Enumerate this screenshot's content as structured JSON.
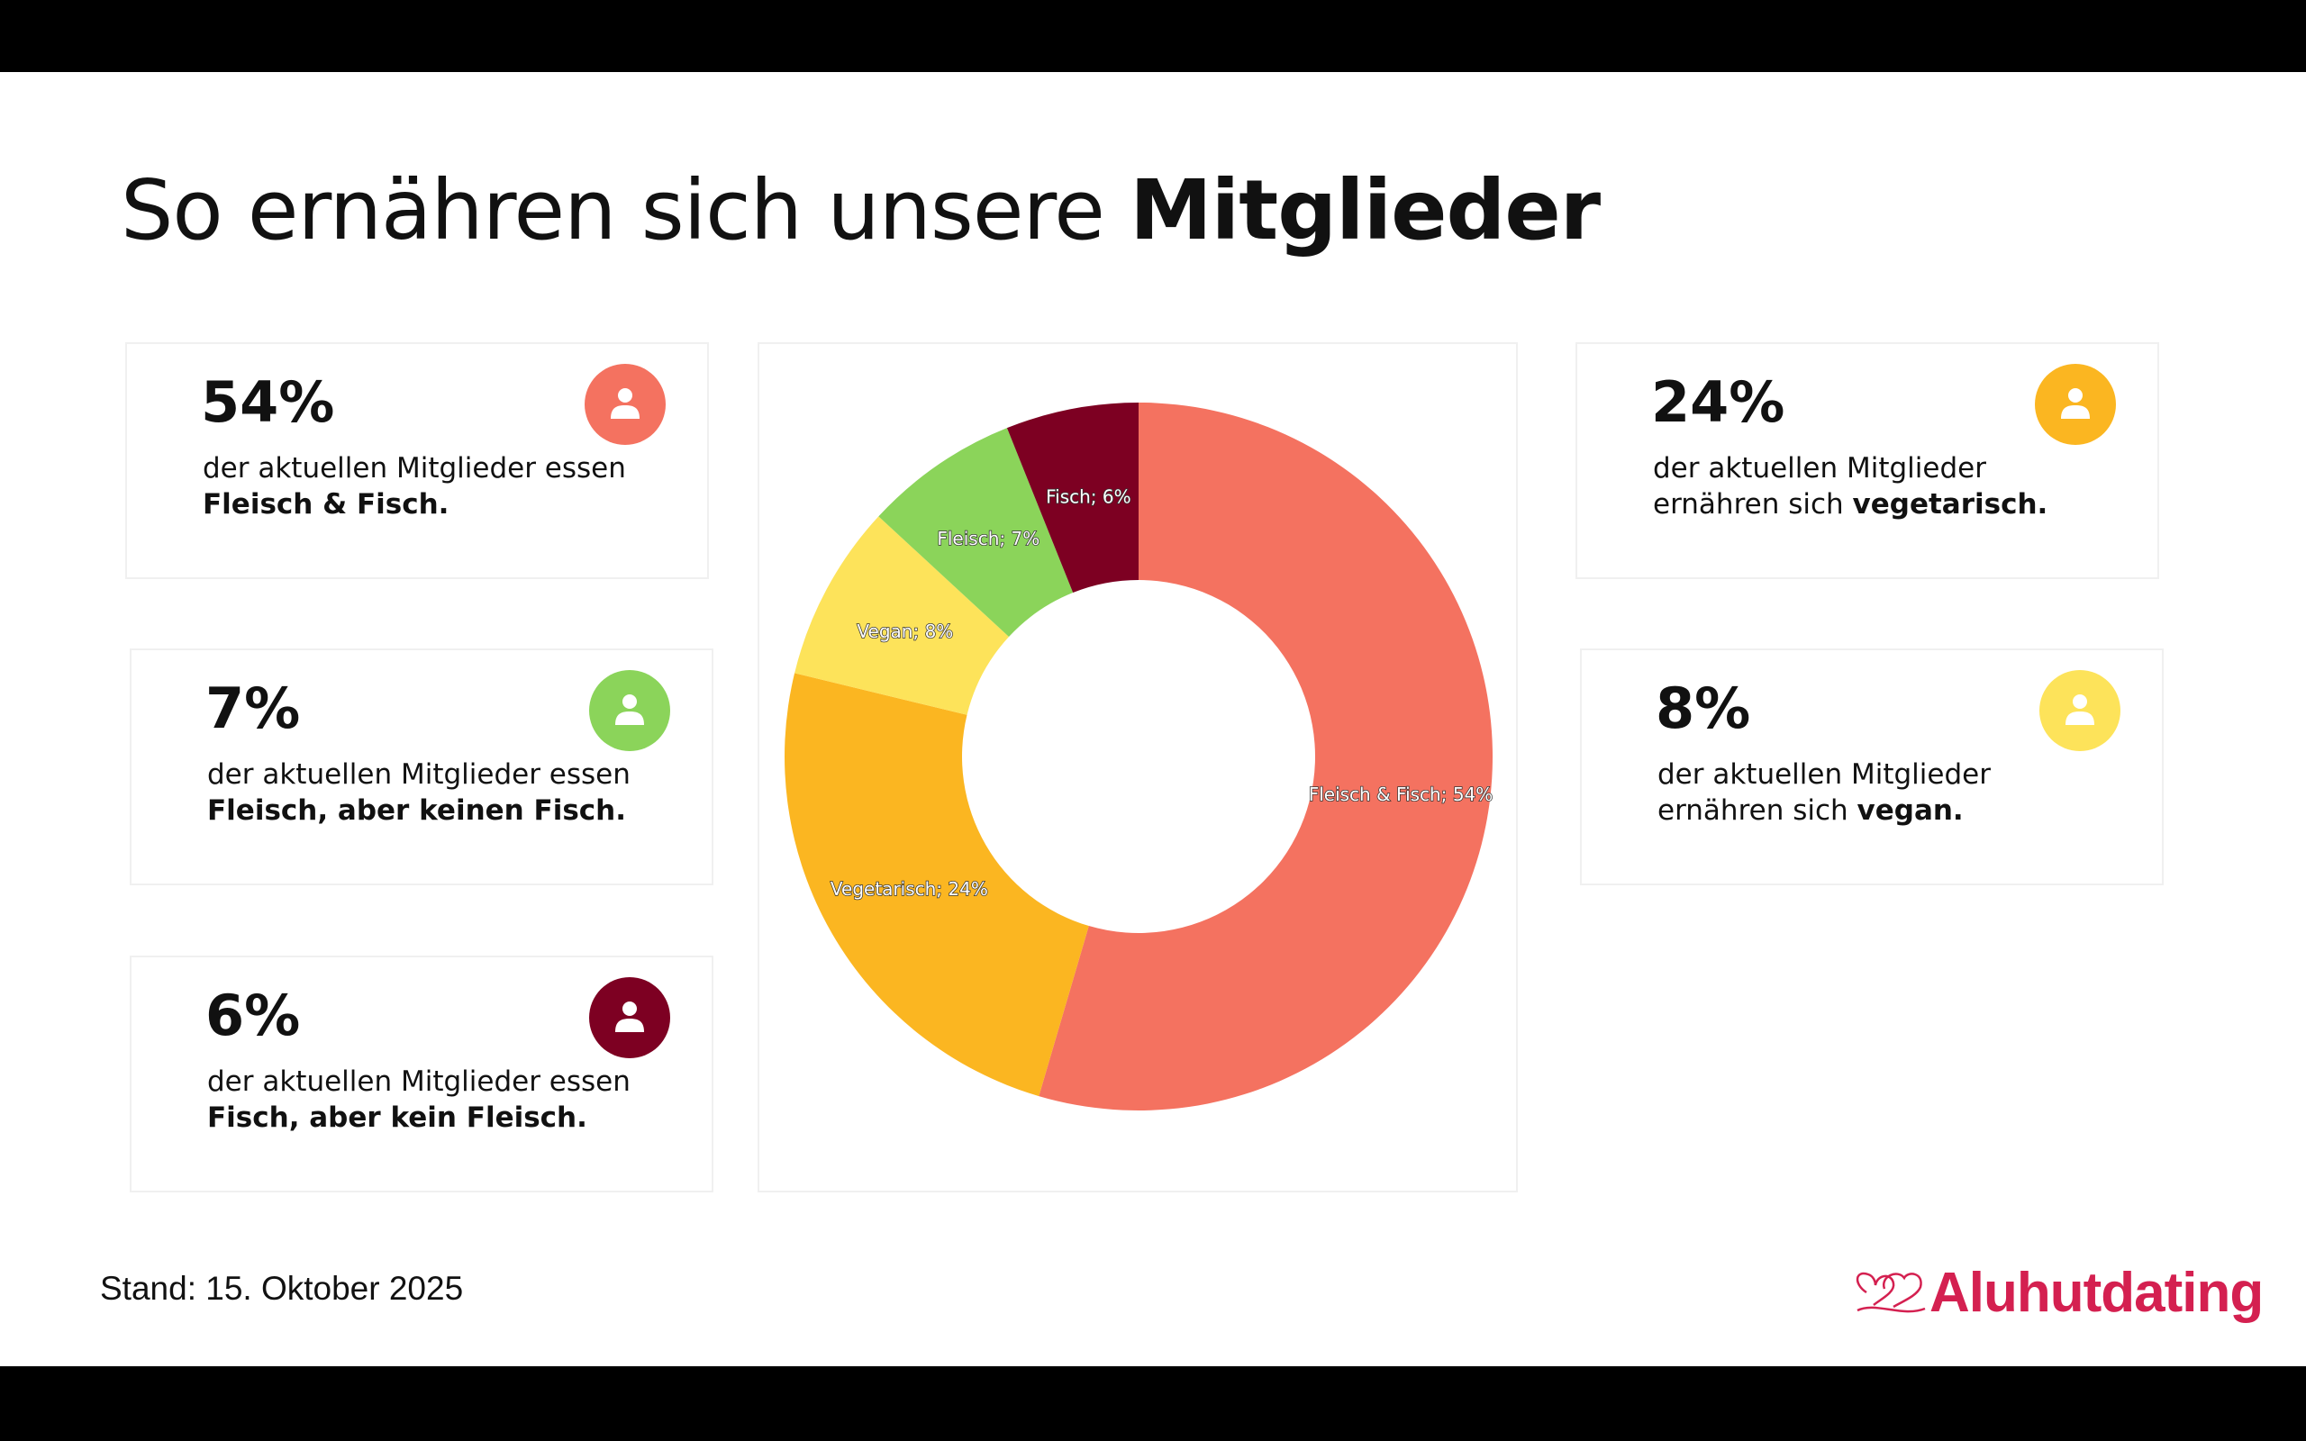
{
  "title": {
    "regular": "So ernähren sich unsere ",
    "bold": "Mitglieder"
  },
  "cards": [
    {
      "pct": "54%",
      "line1": "der aktuellen Mitglieder essen",
      "pre": "",
      "bold": "Fleisch & Fisch.",
      "color": "#f47260"
    },
    {
      "pct": "7%",
      "line1": "der aktuellen Mitglieder essen",
      "pre": "",
      "bold": "Fleisch, aber keinen Fisch.",
      "color": "#8bd45a"
    },
    {
      "pct": "6%",
      "line1": "der aktuellen Mitglieder essen",
      "pre": "",
      "bold": "Fisch, aber kein Fleisch.",
      "color": "#7d0022"
    },
    {
      "pct": "24%",
      "line1": "der aktuellen Mitglieder",
      "pre": "ernähren sich ",
      "bold": "vegetarisch.",
      "color": "#fbb621"
    },
    {
      "pct": "8%",
      "line1": "der aktuellen Mitglieder",
      "pre": "ernähren sich ",
      "bold": "vegan.",
      "color": "#fde35a"
    }
  ],
  "chart_data": {
    "type": "pie",
    "donut": true,
    "categories": [
      "Fleisch & Fisch",
      "Vegetarisch",
      "Vegan",
      "Fleisch",
      "Fisch"
    ],
    "values": [
      54,
      24,
      8,
      7,
      6
    ],
    "labels": [
      "Fleisch & Fisch; 54%",
      "Vegetarisch; 24%",
      "Vegan; 8%",
      "Fleisch; 7%",
      "Fisch; 6%"
    ],
    "colors": [
      "#f47260",
      "#fbb621",
      "#fde35a",
      "#8bd45a",
      "#7d0022"
    ]
  },
  "footer": {
    "stand": "Stand: 15. Oktober 2025",
    "logo": "Aluhutdating"
  }
}
